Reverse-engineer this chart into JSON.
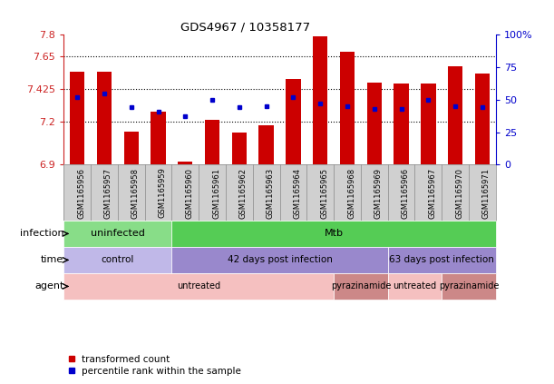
{
  "title": "GDS4967 / 10358177",
  "samples": [
    "GSM1165956",
    "GSM1165957",
    "GSM1165958",
    "GSM1165959",
    "GSM1165960",
    "GSM1165961",
    "GSM1165962",
    "GSM1165963",
    "GSM1165964",
    "GSM1165965",
    "GSM1165968",
    "GSM1165969",
    "GSM1165966",
    "GSM1165967",
    "GSM1165970",
    "GSM1165971"
  ],
  "transformed_count": [
    7.54,
    7.54,
    7.13,
    7.27,
    6.92,
    7.21,
    7.12,
    7.17,
    7.49,
    7.79,
    7.68,
    7.47,
    7.46,
    7.46,
    7.58,
    7.53
  ],
  "percentile_rank": [
    52,
    55,
    44,
    41,
    37,
    50,
    44,
    45,
    52,
    47,
    45,
    43,
    43,
    50,
    45,
    44
  ],
  "ylim_left": [
    6.9,
    7.8
  ],
  "ylim_right": [
    0,
    100
  ],
  "yticks_left": [
    6.9,
    7.2,
    7.425,
    7.65,
    7.8
  ],
  "ytick_labels_left": [
    "6.9",
    "7.2",
    "7.425",
    "7.65",
    "7.8"
  ],
  "yticks_right": [
    0,
    25,
    50,
    75,
    100
  ],
  "ytick_labels_right": [
    "0",
    "25",
    "50",
    "75",
    "100%"
  ],
  "bar_color": "#cc0000",
  "dot_color": "#0000cc",
  "bar_bottom": 6.9,
  "infection_groups": [
    {
      "label": "uninfected",
      "start": 0,
      "end": 4,
      "color": "#88dd88"
    },
    {
      "label": "Mtb",
      "start": 4,
      "end": 16,
      "color": "#55cc55"
    }
  ],
  "time_groups": [
    {
      "label": "control",
      "start": 0,
      "end": 4,
      "color": "#c0b8e8"
    },
    {
      "label": "42 days post infection",
      "start": 4,
      "end": 12,
      "color": "#9988cc"
    },
    {
      "label": "63 days post infection",
      "start": 12,
      "end": 16,
      "color": "#9988cc"
    }
  ],
  "agent_groups": [
    {
      "label": "untreated",
      "start": 0,
      "end": 10,
      "color": "#f5c0c0"
    },
    {
      "label": "pyrazinamide",
      "start": 10,
      "end": 12,
      "color": "#cc8888"
    },
    {
      "label": "untreated",
      "start": 12,
      "end": 14,
      "color": "#f5c0c0"
    },
    {
      "label": "pyrazinamide",
      "start": 14,
      "end": 16,
      "color": "#cc8888"
    }
  ],
  "dotted_gridlines": [
    7.2,
    7.425,
    7.65
  ],
  "xlabel_bg_color": "#d0d0d0",
  "label_fontsize": 8,
  "tick_fontsize": 7
}
